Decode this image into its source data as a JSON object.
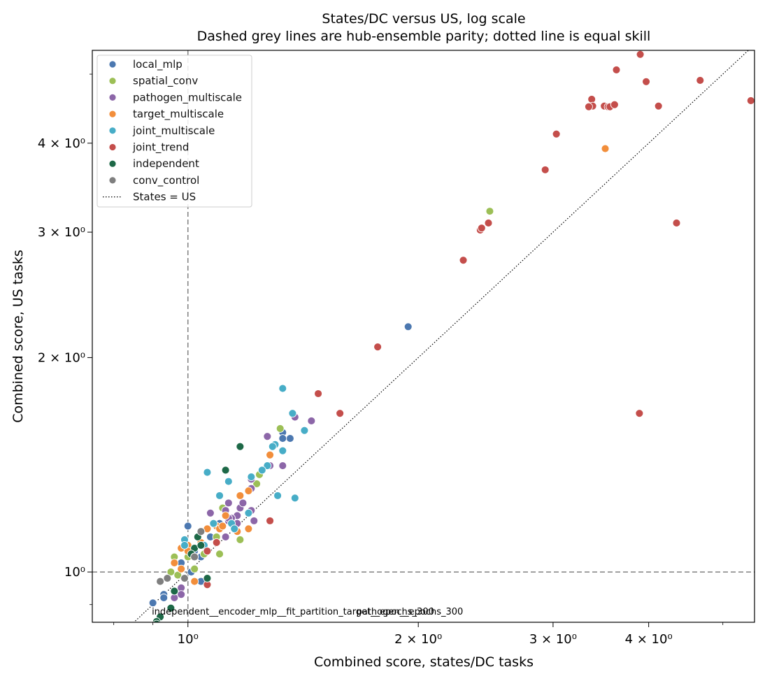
{
  "chart_data": {
    "type": "scatter",
    "title": "States/DC versus US, log scale",
    "subtitle": "Dashed grey lines are hub-ensemble parity; dotted line is equal skill",
    "xlabel": "Combined score, states/DC tasks",
    "ylabel": "Combined score, US tasks",
    "x_scale": "log",
    "y_scale": "log",
    "xlim": [
      0.75,
      5.5
    ],
    "ylim": [
      0.85,
      5.4
    ],
    "x_ticks": [
      {
        "value": 1,
        "label": "10⁰"
      },
      {
        "value": 2,
        "label": "2 × 10⁰"
      },
      {
        "value": 3,
        "label": "3 × 10⁰"
      },
      {
        "value": 4,
        "label": "4 × 10⁰"
      }
    ],
    "y_ticks": [
      {
        "value": 1,
        "label": "10⁰"
      },
      {
        "value": 2,
        "label": "2 × 10⁰"
      },
      {
        "value": 3,
        "label": "3 × 10⁰"
      },
      {
        "value": 4,
        "label": "4 × 10⁰"
      }
    ],
    "grid": false,
    "legend_position": "top-left",
    "reference_lines": {
      "parity_x": 1.0,
      "parity_y": 1.0,
      "equal_skill_label": "States = US"
    },
    "annotations": [
      {
        "text": "independent__encoder_mlp__fit_partition_target__epochs_300",
        "x": 0.897,
        "y": 0.871
      },
      {
        "text": "pathogen__epochs_300",
        "x": 1.66,
        "y": 0.871
      }
    ],
    "series": [
      {
        "name": "local_mlp",
        "color": "#4c78b0",
        "points": [
          [
            1.0,
            1.16
          ],
          [
            1.94,
            2.21
          ],
          [
            1.33,
            1.57
          ],
          [
            1.36,
            1.54
          ],
          [
            1.33,
            1.54
          ],
          [
            1.07,
            1.12
          ],
          [
            1.09,
            1.1
          ],
          [
            1.1,
            1.17
          ],
          [
            1.04,
            1.05
          ],
          [
            1.05,
            1.06
          ],
          [
            1.04,
            0.97
          ],
          [
            0.96,
            0.94
          ],
          [
            0.93,
            0.93
          ],
          [
            0.93,
            0.92
          ],
          [
            0.9,
            0.905
          ],
          [
            1.01,
            1.0
          ],
          [
            0.98,
            1.03
          ],
          [
            1.02,
            1.07
          ],
          [
            1.15,
            1.18
          ]
        ]
      },
      {
        "name": "spatial_conv",
        "color": "#9cbf56",
        "points": [
          [
            2.48,
            3.21
          ],
          [
            1.32,
            1.59
          ],
          [
            1.24,
            1.37
          ],
          [
            1.23,
            1.33
          ],
          [
            1.11,
            1.23
          ],
          [
            1.09,
            1.12
          ],
          [
            1.17,
            1.11
          ],
          [
            1.05,
            1.06
          ],
          [
            0.96,
            1.05
          ],
          [
            0.95,
            1.0
          ],
          [
            0.97,
            0.99
          ],
          [
            1.0,
            1.05
          ],
          [
            1.02,
            1.01
          ],
          [
            1.1,
            1.06
          ]
        ]
      },
      {
        "name": "pathogen_multiscale",
        "color": "#8c66a8",
        "points": [
          [
            1.45,
            1.63
          ],
          [
            1.38,
            1.65
          ],
          [
            1.27,
            1.55
          ],
          [
            1.33,
            1.41
          ],
          [
            1.28,
            1.41
          ],
          [
            1.21,
            1.35
          ],
          [
            1.12,
            1.39
          ],
          [
            1.21,
            1.31
          ],
          [
            1.13,
            1.25
          ],
          [
            1.12,
            1.22
          ],
          [
            1.17,
            1.23
          ],
          [
            1.21,
            1.22
          ],
          [
            1.16,
            1.2
          ],
          [
            1.16,
            1.17
          ],
          [
            1.13,
            1.18
          ],
          [
            1.14,
            1.19
          ],
          [
            1.22,
            1.18
          ],
          [
            1.13,
            1.19
          ],
          [
            1.07,
            1.21
          ],
          [
            1.12,
            1.12
          ],
          [
            0.98,
            0.95
          ],
          [
            0.98,
            0.93
          ],
          [
            0.96,
            0.92
          ],
          [
            0.99,
            0.98
          ],
          [
            1.18,
            1.25
          ]
        ]
      },
      {
        "name": "target_multiscale",
        "color": "#f28e3b",
        "points": [
          [
            3.51,
            3.93
          ],
          [
            1.28,
            1.46
          ],
          [
            1.2,
            1.3
          ],
          [
            1.17,
            1.28
          ],
          [
            1.12,
            1.2
          ],
          [
            1.16,
            1.14
          ],
          [
            1.09,
            1.16
          ],
          [
            1.1,
            1.15
          ],
          [
            1.06,
            1.15
          ],
          [
            1.0,
            1.09
          ],
          [
            0.98,
            1.08
          ],
          [
            0.96,
            1.03
          ],
          [
            0.98,
            1.01
          ],
          [
            1.02,
            0.97
          ],
          [
            0.97,
            0.84
          ],
          [
            1.04,
            1.1
          ],
          [
            1.2,
            1.15
          ],
          [
            1.0,
            1.07
          ],
          [
            1.11,
            1.16
          ]
        ]
      },
      {
        "name": "joint_multiscale",
        "color": "#47adc7",
        "points": [
          [
            1.33,
            1.81
          ],
          [
            1.37,
            1.67
          ],
          [
            1.38,
            1.27
          ],
          [
            1.42,
            1.58
          ],
          [
            1.3,
            1.51
          ],
          [
            1.29,
            1.5
          ],
          [
            1.33,
            1.48
          ],
          [
            1.27,
            1.41
          ],
          [
            1.31,
            1.28
          ],
          [
            1.25,
            1.39
          ],
          [
            1.21,
            1.36
          ],
          [
            1.13,
            1.34
          ],
          [
            1.06,
            1.38
          ],
          [
            1.1,
            1.28
          ],
          [
            1.2,
            1.21
          ],
          [
            1.14,
            1.17
          ],
          [
            1.15,
            1.15
          ],
          [
            0.99,
            1.11
          ],
          [
            0.95,
            0.89
          ],
          [
            0.99,
            1.09
          ],
          [
            1.08,
            1.17
          ],
          [
            1.05,
            1.09
          ]
        ]
      },
      {
        "name": "joint_trend",
        "color": "#c44e4b",
        "points": [
          [
            3.9,
            5.33
          ],
          [
            3.63,
            5.07
          ],
          [
            3.97,
            4.88
          ],
          [
            4.67,
            4.9
          ],
          [
            5.44,
            4.59
          ],
          [
            3.37,
            4.61
          ],
          [
            3.38,
            4.51
          ],
          [
            3.5,
            4.51
          ],
          [
            3.54,
            4.5
          ],
          [
            3.56,
            4.5
          ],
          [
            3.61,
            4.53
          ],
          [
            4.12,
            4.51
          ],
          [
            3.34,
            4.5
          ],
          [
            3.03,
            4.12
          ],
          [
            2.93,
            3.67
          ],
          [
            2.41,
            3.02
          ],
          [
            2.42,
            3.04
          ],
          [
            2.47,
            3.09
          ],
          [
            4.35,
            3.09
          ],
          [
            2.29,
            2.74
          ],
          [
            1.77,
            2.07
          ],
          [
            1.48,
            1.78
          ],
          [
            1.58,
            1.67
          ],
          [
            3.89,
            1.67
          ],
          [
            1.28,
            1.18
          ],
          [
            1.09,
            1.1
          ],
          [
            1.06,
            1.07
          ],
          [
            1.06,
            0.96
          ]
        ]
      },
      {
        "name": "independent",
        "color": "#1d6847",
        "points": [
          [
            1.17,
            1.5
          ],
          [
            1.12,
            1.39
          ],
          [
            1.03,
            1.12
          ],
          [
            1.02,
            1.08
          ],
          [
            1.04,
            1.09
          ],
          [
            1.01,
            1.06
          ],
          [
            1.06,
            0.98
          ],
          [
            0.96,
            0.94
          ],
          [
            0.95,
            0.89
          ],
          [
            0.92,
            0.865
          ],
          [
            0.91,
            0.852
          ],
          [
            0.91,
            0.845
          ]
        ]
      },
      {
        "name": "conv_control",
        "color": "#7f7f7f",
        "points": [
          [
            0.92,
            0.97
          ],
          [
            0.94,
            0.98
          ],
          [
            0.99,
            0.98
          ],
          [
            1.04,
            1.14
          ],
          [
            1.02,
            1.05
          ]
        ]
      }
    ],
    "legend_line_label": "States = US"
  }
}
